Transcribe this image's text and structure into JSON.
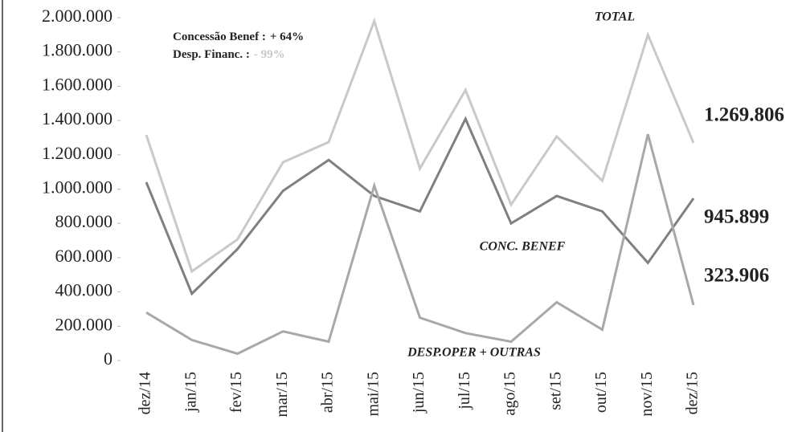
{
  "chart_data": {
    "type": "line",
    "categories": [
      "dez/14",
      "jan/15",
      "fev/15",
      "mar/15",
      "abr/15",
      "mai/15",
      "jun/15",
      "jul/15",
      "ago/15",
      "set/15",
      "out/15",
      "nov/15",
      "dez/15"
    ],
    "series": [
      {
        "name": "TOTAL",
        "color": "#c9c9c9",
        "values": [
          1316000,
          520000,
          707000,
          1157000,
          1274000,
          1980000,
          1120000,
          1578000,
          909000,
          1307000,
          1049000,
          1900000,
          1269806
        ],
        "value_labels": [
          null,
          null,
          null,
          null,
          null,
          null,
          null,
          null,
          null,
          null,
          null,
          null,
          "1.269.806"
        ]
      },
      {
        "name": "CONC. BENEF",
        "color": "#808080",
        "values": [
          1040000,
          390000,
          650000,
          990000,
          1170000,
          960000,
          870000,
          1410000,
          800000,
          960000,
          870000,
          570000,
          945899
        ],
        "value_labels": [
          null,
          null,
          null,
          null,
          null,
          null,
          null,
          null,
          null,
          null,
          null,
          null,
          "945.899"
        ]
      },
      {
        "name": "DESP.OPER + OUTRAS",
        "color": "#a8a8a8",
        "values": [
          280000,
          120000,
          40000,
          170000,
          110000,
          1020000,
          250000,
          160000,
          110000,
          340000,
          180000,
          1320000,
          323906
        ],
        "value_labels": [
          null,
          null,
          null,
          null,
          null,
          null,
          null,
          null,
          null,
          null,
          null,
          null,
          "323.906"
        ]
      }
    ],
    "annotations": [
      {
        "label": "Concessão  Benef :",
        "value": "+ 64%"
      },
      {
        "label": "Desp. Financ. :",
        "value": "- 99%"
      }
    ],
    "ylim": [
      0,
      2000000
    ],
    "yticks": [
      0,
      {
        "value": 200000,
        "label": "200.000"
      },
      {
        "value": 400000,
        "label": "400.000"
      },
      {
        "value": 600000,
        "label": "600.000"
      },
      {
        "value": 800000,
        "label": "800.000"
      },
      {
        "value": 1000000,
        "label": "1.000.000"
      },
      {
        "value": 1200000,
        "label": "1.200.000"
      },
      {
        "value": 1400000,
        "label": "1.400.000"
      },
      {
        "value": 1600000,
        "label": "1.600.000"
      },
      {
        "value": 1800000,
        "label": "1.800.000"
      },
      {
        "value": 2000000,
        "label": "2.000.000"
      }
    ],
    "grid": false
  }
}
